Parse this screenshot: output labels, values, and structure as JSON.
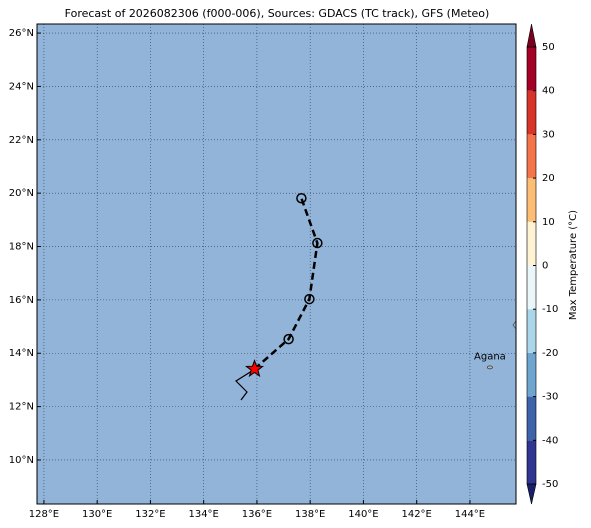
{
  "chart_data": {
    "type": "map",
    "title": "Forecast of 2026082306 (f000-006), Sources: GDACS (TC track), GFS (Meteo)",
    "xlim": [
      127.74,
      145.73
    ],
    "ylim": [
      8.35,
      26.34
    ],
    "xticks": [
      {
        "value": 128,
        "label": "128°E"
      },
      {
        "value": 130,
        "label": "130°E"
      },
      {
        "value": 132,
        "label": "132°E"
      },
      {
        "value": 134,
        "label": "134°E"
      },
      {
        "value": 136,
        "label": "136°E"
      },
      {
        "value": 138,
        "label": "138°E"
      },
      {
        "value": 140,
        "label": "140°E"
      },
      {
        "value": 142,
        "label": "142°E"
      },
      {
        "value": 144,
        "label": "144°E"
      }
    ],
    "yticks": [
      {
        "value": 10,
        "label": "10°N"
      },
      {
        "value": 12,
        "label": "12°N"
      },
      {
        "value": 14,
        "label": "14°N"
      },
      {
        "value": 16,
        "label": "16°N"
      },
      {
        "value": 18,
        "label": "18°N"
      },
      {
        "value": 20,
        "label": "20°N"
      },
      {
        "value": 22,
        "label": "22°N"
      },
      {
        "value": 24,
        "label": "24°N"
      },
      {
        "value": 26,
        "label": "26°N"
      }
    ],
    "grid": true,
    "ocean_color": "#92b4d9",
    "track": {
      "lon": [
        135.91,
        137.19,
        137.97,
        138.27,
        137.67
      ],
      "lat": [
        13.41,
        14.53,
        16.03,
        18.13,
        19.81
      ],
      "color": "#000000",
      "current_color": "#ff0000"
    },
    "places": [
      {
        "name": "Agana",
        "lon": 144.75,
        "lat": 13.47
      }
    ],
    "colorbar": {
      "label": "Max Temperature (°C)",
      "lim": [
        -50,
        50
      ],
      "ticks": [
        -50,
        -40,
        -30,
        -20,
        -10,
        0,
        10,
        20,
        30,
        40,
        50
      ],
      "colors": [
        "#2f3591",
        "#3d64aa",
        "#6ea6cf",
        "#a9d6e8",
        "#eaf6fa",
        "#fef3d2",
        "#fdbd74",
        "#f5754a",
        "#d7342a",
        "#a40127"
      ],
      "extend_colors": [
        "#1b1f6b",
        "#7a0020"
      ]
    }
  }
}
